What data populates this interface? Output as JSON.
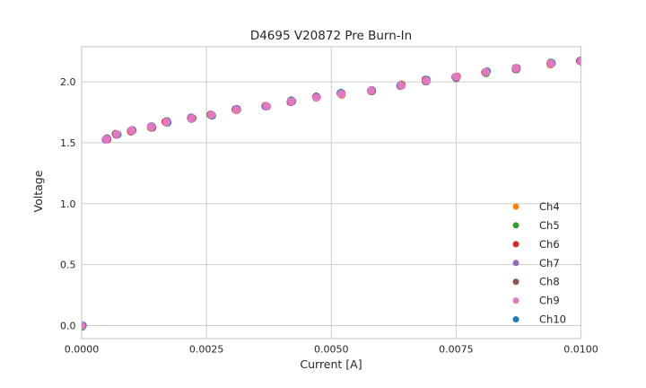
{
  "figure": {
    "title": "D4695 V20872 Pre Burn-In"
  },
  "styles": {
    "background": "#ffffff",
    "grid_color": "#cccccc",
    "spine_color": "#cccccc",
    "text_color": "#262626"
  },
  "chart_data": {
    "type": "scatter",
    "title": "D4695 V20872 Pre Burn-In",
    "xlabel": "Current [A]",
    "ylabel": "Voltage",
    "xlim": [
      0.0,
      0.01
    ],
    "ylim": [
      -0.107,
      2.288
    ],
    "x_ticks": [
      0.0,
      0.0025,
      0.005,
      0.0075,
      0.01
    ],
    "x_tick_labels": [
      "0.0000",
      "0.0025",
      "0.0050",
      "0.0075",
      "0.0100"
    ],
    "y_ticks": [
      0.0,
      0.5,
      1.0,
      1.5,
      2.0
    ],
    "y_tick_labels": [
      "0.0",
      "0.5",
      "1.0",
      "1.5",
      "2.0"
    ],
    "grid": true,
    "legend_position": "lower right",
    "series_overlap_note": "All channels plot visually identical overlapping points; Ch9 (pink) is drawn on top",
    "x": [
      0.0,
      0.0005,
      0.0007,
      0.001,
      0.0014,
      0.0017,
      0.0022,
      0.0026,
      0.0031,
      0.0037,
      0.0042,
      0.0047,
      0.0052,
      0.0058,
      0.0064,
      0.0069,
      0.0075,
      0.0081,
      0.0087,
      0.0094,
      0.01
    ],
    "series": [
      {
        "name": "Ch4",
        "color": "#ff7f0e",
        "values": [
          0.0,
          1.53,
          1.57,
          1.6,
          1.63,
          1.67,
          1.7,
          1.73,
          1.77,
          1.8,
          1.84,
          1.87,
          1.9,
          1.93,
          1.97,
          2.01,
          2.04,
          2.08,
          2.11,
          2.15,
          2.17
        ]
      },
      {
        "name": "Ch5",
        "color": "#2ca02c",
        "values": [
          0.0,
          1.53,
          1.57,
          1.6,
          1.63,
          1.67,
          1.7,
          1.73,
          1.77,
          1.8,
          1.84,
          1.87,
          1.9,
          1.93,
          1.97,
          2.01,
          2.04,
          2.08,
          2.11,
          2.15,
          2.17
        ]
      },
      {
        "name": "Ch6",
        "color": "#d62728",
        "values": [
          0.0,
          1.53,
          1.57,
          1.6,
          1.63,
          1.67,
          1.7,
          1.73,
          1.77,
          1.8,
          1.84,
          1.87,
          1.9,
          1.93,
          1.97,
          2.01,
          2.04,
          2.08,
          2.11,
          2.15,
          2.17
        ]
      },
      {
        "name": "Ch7",
        "color": "#9467bd",
        "values": [
          0.0,
          1.53,
          1.57,
          1.6,
          1.63,
          1.67,
          1.7,
          1.73,
          1.77,
          1.8,
          1.84,
          1.87,
          1.9,
          1.93,
          1.97,
          2.01,
          2.04,
          2.08,
          2.11,
          2.15,
          2.17
        ]
      },
      {
        "name": "Ch8",
        "color": "#8c564b",
        "values": [
          0.0,
          1.53,
          1.57,
          1.6,
          1.63,
          1.67,
          1.7,
          1.73,
          1.77,
          1.8,
          1.84,
          1.87,
          1.9,
          1.93,
          1.97,
          2.01,
          2.04,
          2.08,
          2.11,
          2.15,
          2.17
        ]
      },
      {
        "name": "Ch9",
        "color": "#e377c2",
        "values": [
          0.0,
          1.53,
          1.57,
          1.6,
          1.63,
          1.67,
          1.7,
          1.73,
          1.77,
          1.8,
          1.84,
          1.87,
          1.9,
          1.93,
          1.97,
          2.01,
          2.04,
          2.08,
          2.11,
          2.15,
          2.17
        ]
      },
      {
        "name": "Ch10",
        "color": "#1f77b4",
        "values": [
          0.0,
          1.53,
          1.57,
          1.6,
          1.63,
          1.67,
          1.7,
          1.73,
          1.77,
          1.8,
          1.84,
          1.87,
          1.9,
          1.93,
          1.97,
          2.01,
          2.04,
          2.08,
          2.11,
          2.15,
          2.17
        ]
      }
    ]
  }
}
